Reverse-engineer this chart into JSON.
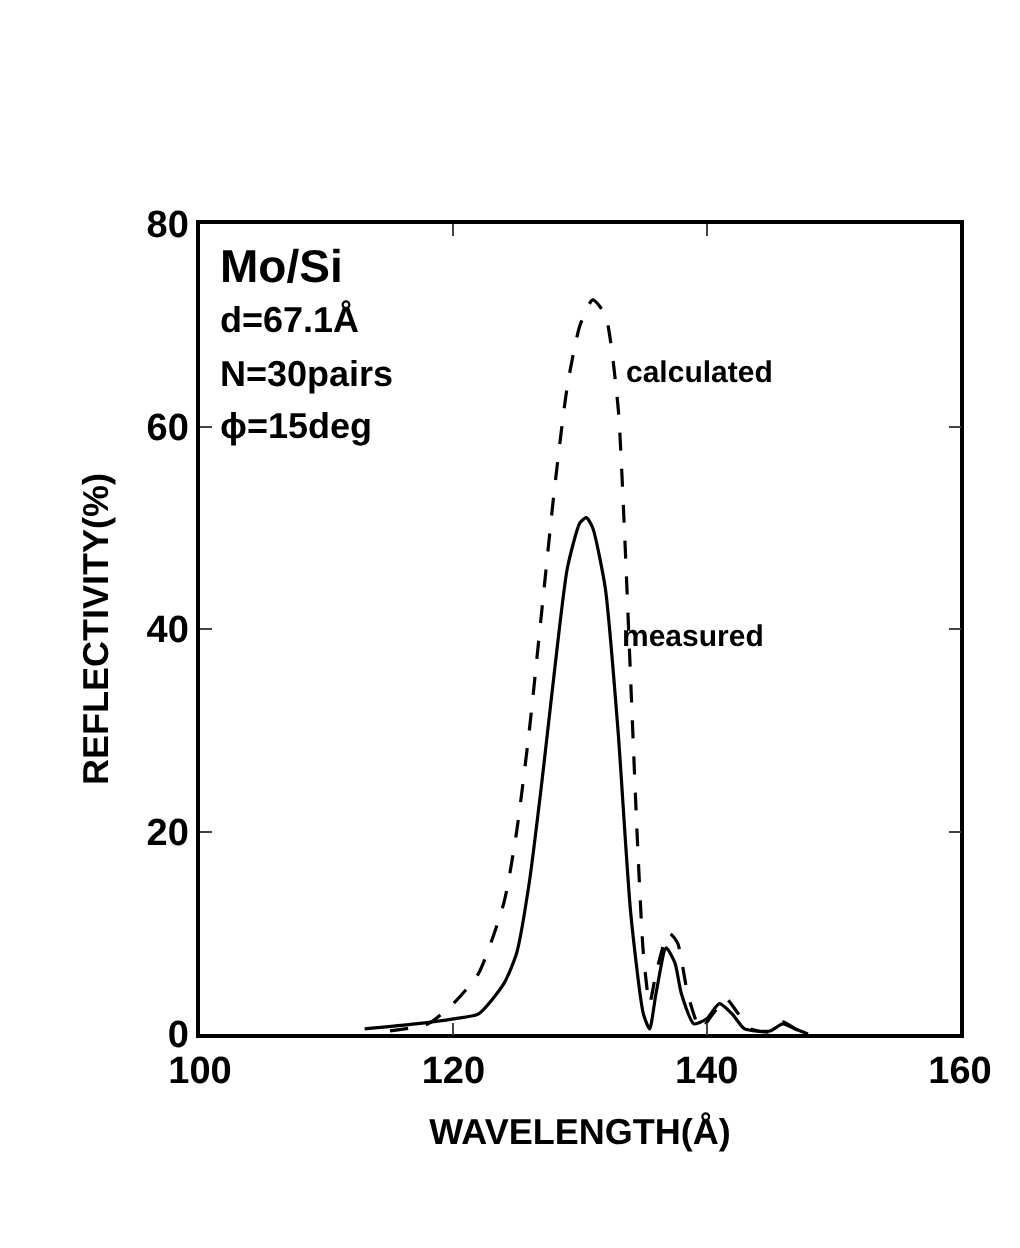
{
  "chart_data": {
    "type": "line",
    "xlabel": "WAVELENGTH(Å)",
    "ylabel": "REFLECTIVITY(%)",
    "xlim": [
      100,
      160
    ],
    "xticks": [
      100,
      120,
      140,
      160
    ],
    "ylim": [
      0,
      80
    ],
    "yticks": [
      0,
      20,
      40,
      60,
      80
    ],
    "grid": false,
    "legend": false,
    "marker": "none",
    "annotations": [
      "Mo/Si",
      "d=67.1Å",
      "N=30pairs",
      "ϕ=15deg"
    ],
    "series": [
      {
        "name": "calculated",
        "color": "#000000",
        "line_style": "dashed",
        "x": [
          115,
          118,
          120,
          122,
          124,
          125,
          126,
          127,
          128,
          129,
          130,
          131,
          132,
          133,
          133.5,
          134,
          134.5,
          135,
          135.5,
          136,
          137,
          137.7,
          138.5,
          139.5,
          140.5,
          141.5,
          142.5,
          143.5,
          145,
          146,
          147,
          148
        ],
        "values": [
          0.3,
          1,
          3,
          6,
          13,
          20,
          30,
          42,
          54,
          64,
          70,
          72.5,
          71,
          62,
          50,
          35,
          20,
          8,
          3,
          6,
          10,
          9,
          4,
          0.5,
          2,
          3.5,
          2,
          0.5,
          0.2,
          1.2,
          0.5,
          0
        ]
      },
      {
        "name": "measured",
        "color": "#000000",
        "line_style": "solid",
        "x": [
          113,
          117,
          120,
          122,
          124,
          125,
          126,
          127,
          128,
          129,
          130,
          130.5,
          131,
          132,
          133,
          134,
          135,
          135.5,
          136,
          136.8,
          137.5,
          138,
          139,
          140,
          141,
          142,
          143,
          145,
          146,
          147,
          148
        ],
        "values": [
          0.5,
          1,
          1.5,
          2,
          5,
          8,
          15,
          25,
          36,
          46,
          50.5,
          51,
          50,
          44,
          30,
          12,
          2,
          0.5,
          4,
          8.5,
          7,
          4,
          1,
          1.5,
          3,
          2,
          0.5,
          0.3,
          1,
          0.5,
          0
        ]
      }
    ]
  }
}
